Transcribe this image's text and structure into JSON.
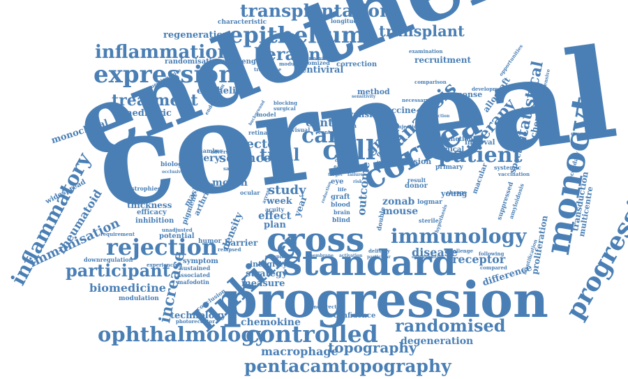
{
  "colors": {
    "word": "#4a7fb5",
    "background": "#ffffff"
  },
  "words": {
    "corneal": "corneal",
    "endothelial": "endothelial",
    "progression": "progression",
    "standard": "standard",
    "cross": "cross",
    "linking": "linking",
    "cornea": "cornea",
    "monocyte": "monocyte",
    "progressive": "progressive",
    "expression": "expression",
    "epithelium": "epithelium",
    "transplantation": "transplantation",
    "inflammation": "inflammation",
    "keralink": "keralink",
    "transplant": "transplant",
    "regeneration": "regeneration",
    "treatment": "treatment",
    "cell": "cell",
    "care": "care",
    "patient": "patient",
    "analysis": "analysis",
    "therapy": "therapy",
    "statistical": "statistical",
    "immunology": "immunology",
    "rejection": "rejection",
    "participant": "participant",
    "inflammatory": "inflammatory",
    "rheumatoid": "rheumatoid",
    "immunisation": "immunisation",
    "ophthalmology": "ophthalmology",
    "controlled": "controlled",
    "randomised": "randomised",
    "topography": "topography",
    "pentacamtopography": "pentacamtopography",
    "macrophage": "macrophage",
    "degeneration": "degeneration",
    "chemokine": "chemokine",
    "increase": "increase",
    "trial": "trial",
    "science": "science",
    "vector": "vector",
    "contact": "contact",
    "group": "group",
    "study": "study",
    "outcome": "outcome",
    "zonab": "zonab",
    "mouse": "mouse",
    "disease": "disease",
    "receptor": "receptor",
    "difference": "difference",
    "density": "density",
    "biomedicine": "biomedicine",
    "month": "month",
    "surgery": "surgery",
    "technology": "technology",
    "measure": "measure",
    "strategy": "strategy",
    "integrity": "integrity",
    "barrier": "barrier",
    "effect": "effect",
    "plan": "plan",
    "week": "week",
    "year": "year",
    "proliferation": "proliferation",
    "transduction": "transduction",
    "multicentre": "multicentre",
    "chemotaxis": "chemotaxis",
    "spectacle": "spectacle",
    "monoclonal": "monoclonal",
    "paediatric": "paediatric",
    "epithelial": "epithelial",
    "lentiviral": "lentiviral",
    "messenger": "messenger",
    "randomisation": "randomisation",
    "recruitment": "recruitment",
    "characteristic": "characteristic",
    "longitudinal": "longitudinal",
    "correction": "correction",
    "randomized": "randomized",
    "vaccine": "vaccine",
    "transfer": "transfer",
    "method": "method",
    "allograft": "allograft",
    "response": "response",
    "widespread": "widespread",
    "thickness": "thickness",
    "efficacy": "efficacy",
    "inhibition": "inhibition",
    "masked": "masked",
    "arthritis": "arthritis",
    "pigment": "pigment",
    "potential": "potential",
    "humor": "humor",
    "symptom": "symptom",
    "sustained": "sustained",
    "associated": "associated",
    "mafodotin": "mafodotin",
    "modulation": "modulation",
    "downregulation": "downregulation",
    "experiencing": "experiencing",
    "conclusion": "conclusion",
    "photoreceptor": "photoreceptor",
    "confidence": "confidence",
    "uncorrected": "uncorrected",
    "vision": "vision",
    "primary": "primary",
    "clinical": "clinical",
    "interval": "interval",
    "junction": "junction",
    "young": "young",
    "macular": "macular",
    "logmar": "logmar",
    "donor": "donor",
    "sterile": "sterile",
    "suppressed": "suppressed",
    "amyloidosis": "amyloidosis",
    "systemic": "systemic",
    "vaccination": "vaccination",
    "secondary": "secondary",
    "overexpression": "overexpression",
    "opportunities": "opportunities",
    "development": "development",
    "following": "following",
    "compared": "compared",
    "identification": "identification",
    "challenge": "challenge",
    "delivery": "delivery",
    "eye": "eye",
    "graft": "graft",
    "blood": "blood",
    "blind": "blind",
    "acuity": "acuity",
    "genetic": "genetic",
    "biology": "biology",
    "chamber": "chamber",
    "retinal": "retinal",
    "visual": "visual",
    "ocular": "ocular",
    "safety": "safety",
    "dystrophies": "dystrophies",
    "requirement": "requirement",
    "relapsed": "relapsed",
    "sample": "sample",
    "transgene": "transgene",
    "modulate": "modulate",
    "innovation": "innovation",
    "questionnaire": "questionnaire",
    "necessary": "necessary",
    "comparison": "comparison",
    "examination": "examination",
    "injection": "injection",
    "control": "control",
    "human": "human",
    "comprehensive": "comprehensive",
    "double": "double",
    "result": "result",
    "hypothesis": "hypothesis",
    "model": "model",
    "adverse": "adverse",
    "surgical": "surgical",
    "blocking": "blocking",
    "change": "change",
    "limbal": "limbal",
    "endothelium": "endothelium",
    "background": "background",
    "unadjusted": "unadjusted",
    "occlusive": "occlusive",
    "membrane": "membrane",
    "activation": "activation",
    "particular": "particular",
    "opportunity": "opportunity",
    "chemokine2": "chemokine",
    "function": "function",
    "sensitivity": "sensitivity",
    "arrest": "arrest",
    "reduction": "reduction",
    "progressive2": "progressive",
    "brain": "brain",
    "life": "life",
    "child": "child",
    "fluid": "fluid",
    "target": "target",
    "cross2": "cross",
    "failure": "failure",
    "risk": "risk"
  }
}
